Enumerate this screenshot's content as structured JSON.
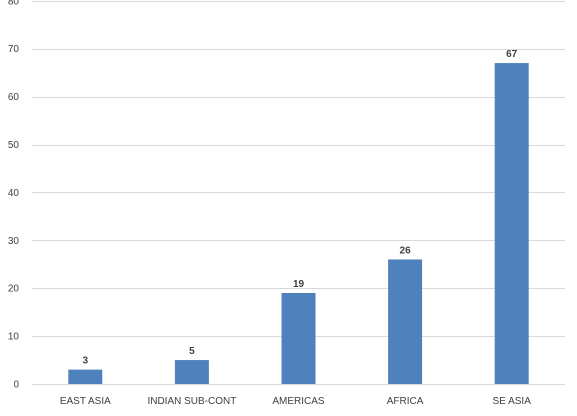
{
  "chart_data": {
    "type": "bar",
    "categories": [
      "EAST ASIA",
      "INDIAN SUB-CONT",
      "AMERICAS",
      "AFRICA",
      "SE ASIA"
    ],
    "values": [
      3,
      5,
      19,
      26,
      67
    ],
    "data_labels": [
      "3",
      "5",
      "19",
      "26",
      "67"
    ],
    "title": "",
    "xlabel": "",
    "ylabel": "",
    "ylim": [
      0,
      80
    ],
    "yticks": [
      0,
      10,
      20,
      30,
      40,
      50,
      60,
      70,
      80
    ],
    "grid": true,
    "legend": "none",
    "bar_color": "#4F81BD",
    "grid_color": "#D9D9D9",
    "text_color": "#404040"
  }
}
